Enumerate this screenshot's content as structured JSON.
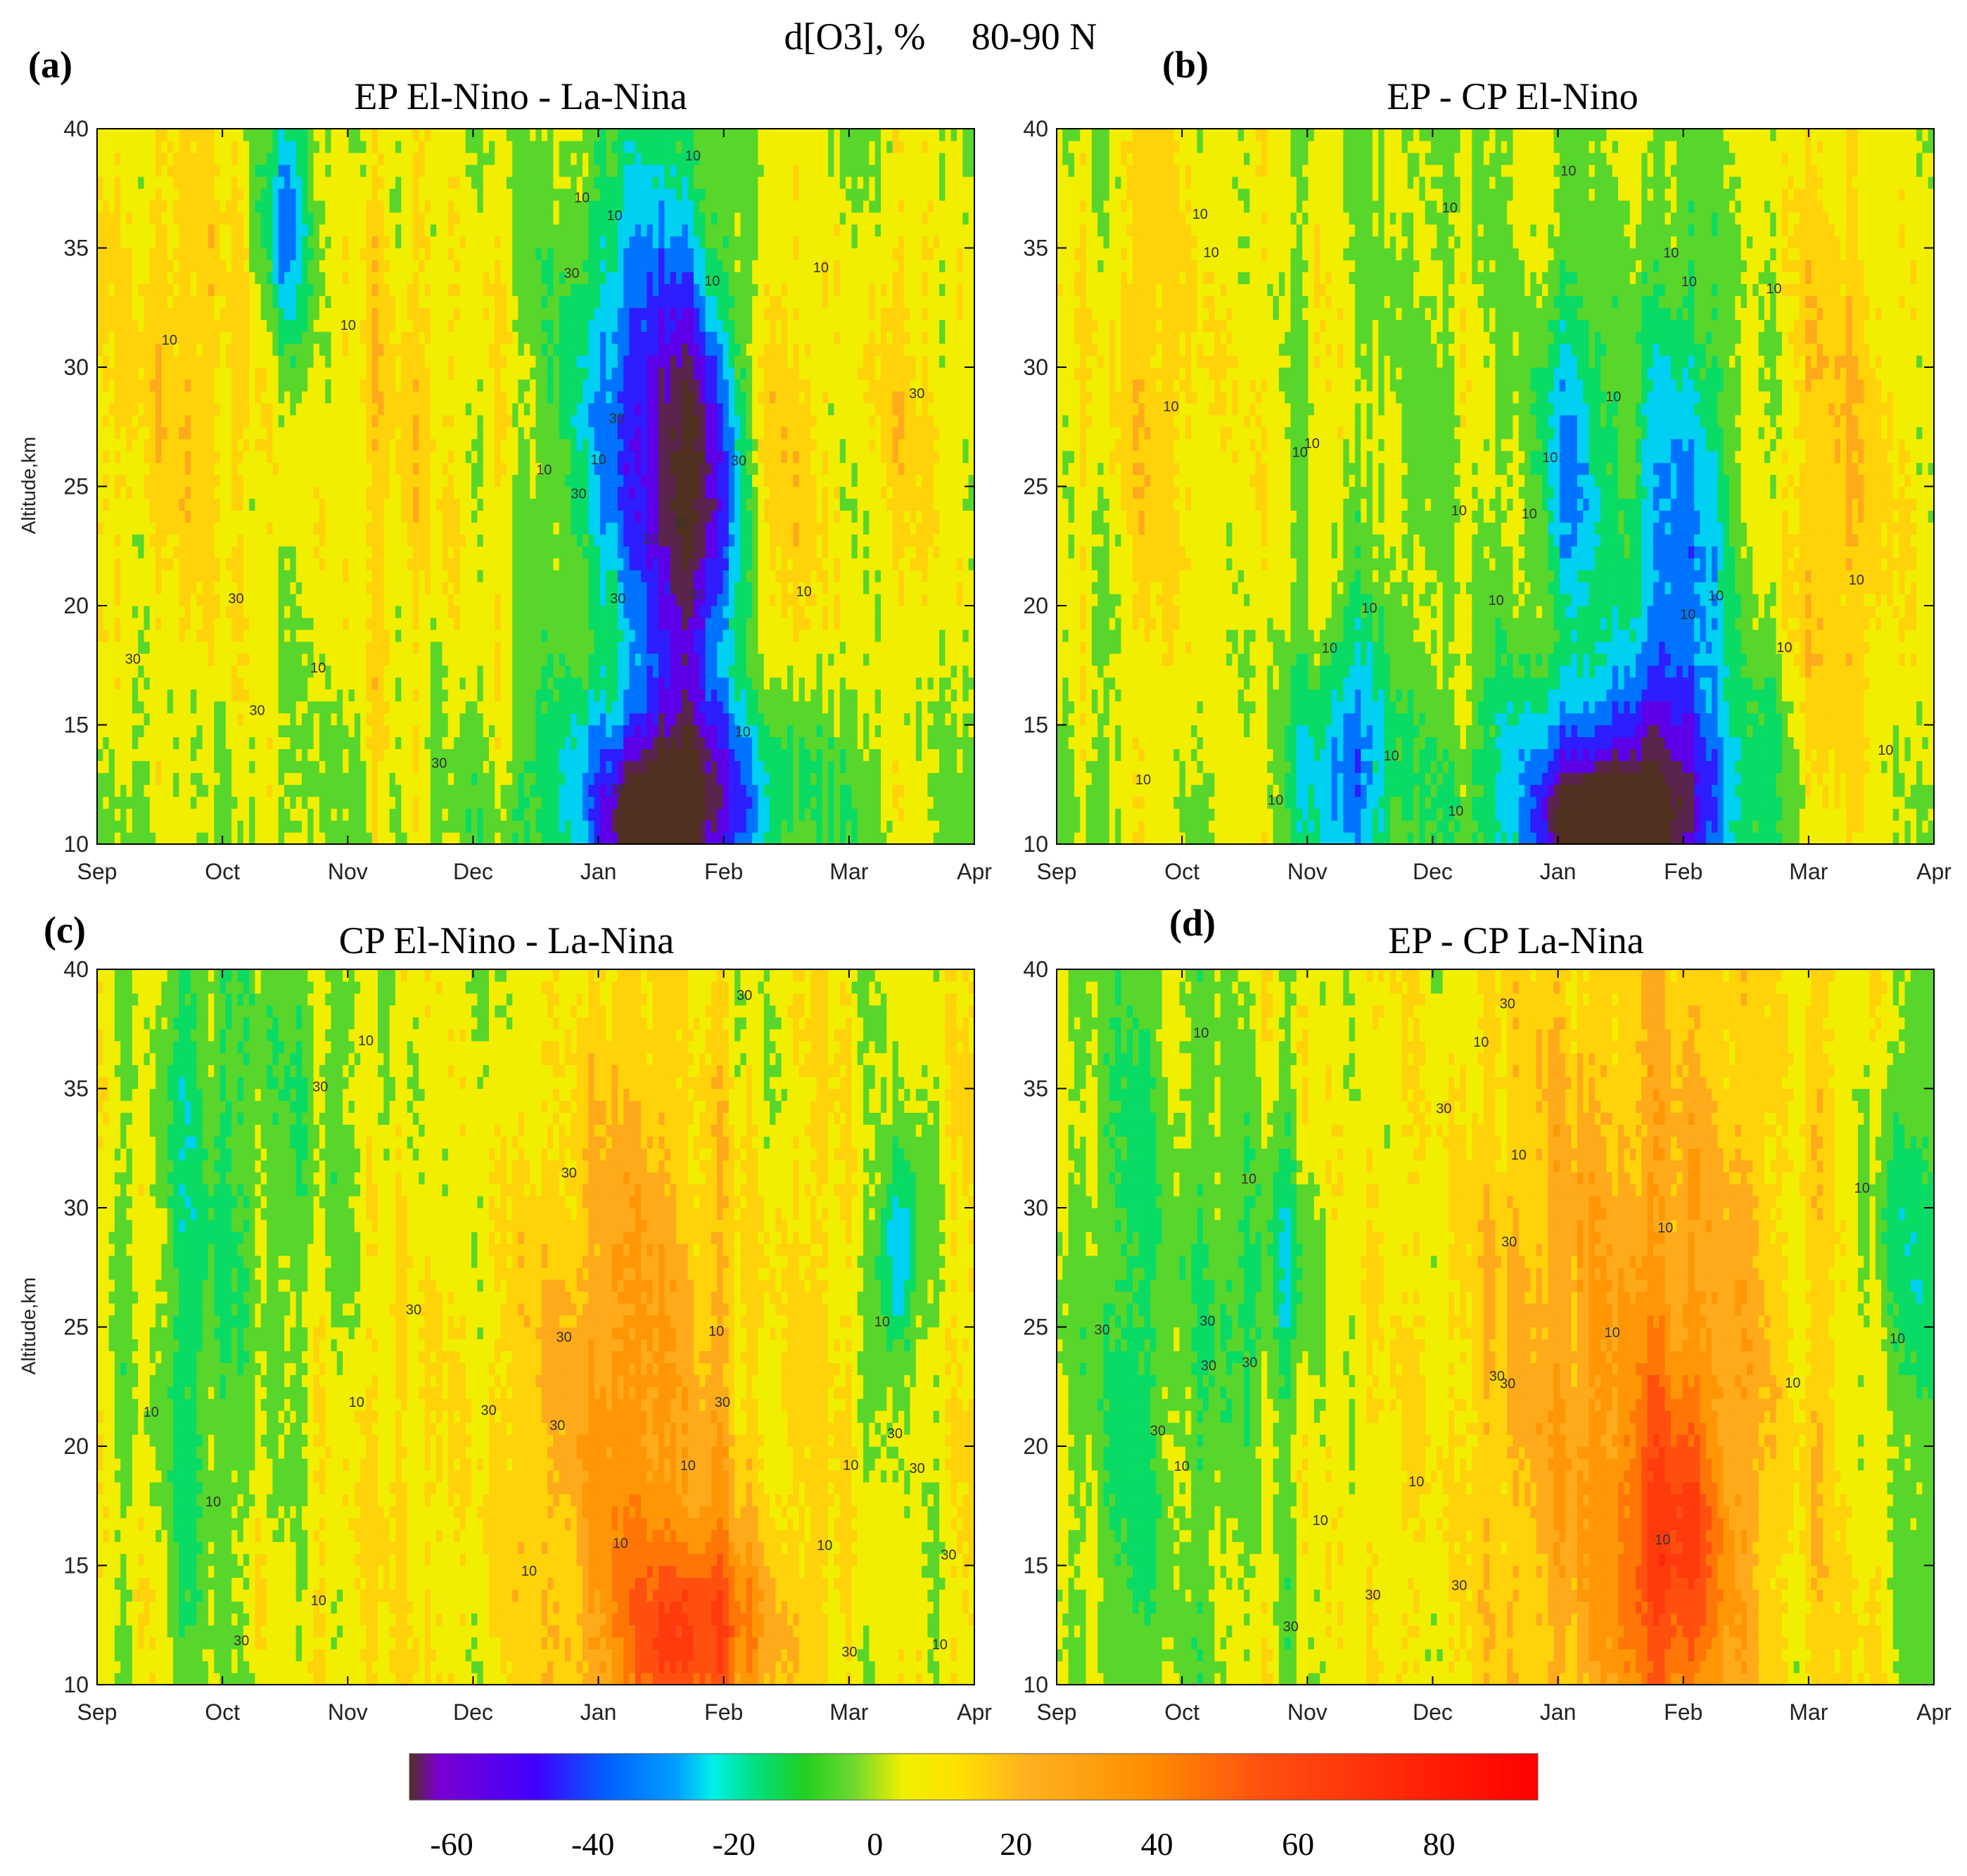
{
  "figure": {
    "title": "d[O3], %",
    "region": "80-90 N"
  },
  "colorbar": {
    "ticks": [
      -60,
      -40,
      -20,
      0,
      20,
      40,
      60,
      80
    ],
    "range": [
      -66,
      94
    ],
    "stops": [
      {
        "v": -66,
        "c": "#503020"
      },
      {
        "v": -62,
        "c": "#7a00d0"
      },
      {
        "v": -48,
        "c": "#4000ff"
      },
      {
        "v": -38,
        "c": "#0060ff"
      },
      {
        "v": -28,
        "c": "#00a0ff"
      },
      {
        "v": -23,
        "c": "#00f0e8"
      },
      {
        "v": -17,
        "c": "#00e080"
      },
      {
        "v": -10,
        "c": "#20d020"
      },
      {
        "v": -3,
        "c": "#70d830"
      },
      {
        "v": 4,
        "c": "#f0f000"
      },
      {
        "v": 12,
        "c": "#ffe000"
      },
      {
        "v": 22,
        "c": "#ffb020"
      },
      {
        "v": 38,
        "c": "#ff9000"
      },
      {
        "v": 55,
        "c": "#ff5010"
      },
      {
        "v": 94,
        "c": "#ff0000"
      }
    ]
  },
  "chart_data": [
    {
      "type": "heatmap",
      "label": "(a)",
      "title": "EP El-Nino - La-Nina",
      "xlabel": "",
      "ylabel": "Altitude,km",
      "x_ticks": [
        "Sep",
        "Oct",
        "Nov",
        "Dec",
        "Jan",
        "Feb",
        "Mar",
        "Apr"
      ],
      "y_ticks": [
        10,
        15,
        20,
        25,
        30,
        35,
        40
      ],
      "ylim": [
        10,
        40
      ],
      "contour_labels": [
        "10",
        "30"
      ],
      "base": -2,
      "features": [
        {
          "m": 4.3,
          "z": 28,
          "dm": 0.4,
          "dz": 7,
          "v": -40
        },
        {
          "m": 4.8,
          "z": 24,
          "dm": 0.25,
          "dz": 6,
          "v": -55
        },
        {
          "m": 4.6,
          "z": 12,
          "dm": 0.6,
          "dz": 3,
          "v": -60
        },
        {
          "m": 4.45,
          "z": 10.5,
          "dm": 0.2,
          "dz": 1.5,
          "v": -75
        },
        {
          "m": 1.5,
          "z": 36,
          "dm": 0.15,
          "dz": 4,
          "v": -35
        },
        {
          "m": 0.6,
          "z": 30,
          "dm": 0.6,
          "dz": 10,
          "v": 18
        },
        {
          "m": 2.6,
          "z": 28,
          "dm": 0.6,
          "dz": 10,
          "v": 15
        },
        {
          "m": 6.5,
          "z": 28,
          "dm": 0.6,
          "dz": 8,
          "v": 12
        },
        {
          "m": 5.4,
          "z": 25,
          "dm": 0.25,
          "dz": 8,
          "v": 16
        }
      ]
    },
    {
      "type": "heatmap",
      "label": "(b)",
      "title": "EP - CP El-Nino",
      "xlabel": "",
      "ylabel": "",
      "x_ticks": [
        "Sep",
        "Oct",
        "Nov",
        "Dec",
        "Jan",
        "Feb",
        "Mar",
        "Apr"
      ],
      "y_ticks": [
        10,
        15,
        20,
        25,
        30,
        35,
        40
      ],
      "ylim": [
        10,
        40
      ],
      "contour_labels": [
        "10"
      ],
      "base": 0,
      "features": [
        {
          "m": 4.5,
          "z": 12,
          "dm": 0.7,
          "dz": 3.5,
          "v": -55
        },
        {
          "m": 4.4,
          "z": 10.5,
          "dm": 0.3,
          "dz": 1.5,
          "v": -80
        },
        {
          "m": 2.3,
          "z": 13,
          "dm": 0.25,
          "dz": 4,
          "v": -40
        },
        {
          "m": 4.95,
          "z": 22,
          "dm": 0.3,
          "dz": 7,
          "v": -35
        },
        {
          "m": 4.1,
          "z": 26,
          "dm": 0.2,
          "dz": 5,
          "v": -30
        },
        {
          "m": 6.4,
          "z": 25,
          "dm": 0.4,
          "dz": 12,
          "v": 18
        },
        {
          "m": 0.7,
          "z": 30,
          "dm": 0.6,
          "dz": 8,
          "v": 12
        }
      ]
    },
    {
      "type": "heatmap",
      "label": "(c)",
      "title": "CP El-Nino - La-Nina",
      "xlabel": "",
      "ylabel": "Altitude,km",
      "x_ticks": [
        "Sep",
        "Oct",
        "Nov",
        "Dec",
        "Jan",
        "Feb",
        "Mar",
        "Apr"
      ],
      "y_ticks": [
        10,
        15,
        20,
        25,
        30,
        35,
        40
      ],
      "ylim": [
        10,
        40
      ],
      "contour_labels": [
        "10",
        "30"
      ],
      "base": 4,
      "features": [
        {
          "m": 4.2,
          "z": 20,
          "dm": 0.8,
          "dz": 12,
          "v": 28
        },
        {
          "m": 4.8,
          "z": 12,
          "dm": 0.4,
          "dz": 3,
          "v": 45
        },
        {
          "m": 0.9,
          "z": 28,
          "dm": 0.5,
          "dz": 12,
          "v": -14
        },
        {
          "m": 6.4,
          "z": 28,
          "dm": 0.12,
          "dz": 3,
          "v": -35
        },
        {
          "m": 1.8,
          "z": 35,
          "dm": 0.5,
          "dz": 6,
          "v": -10
        }
      ]
    },
    {
      "type": "heatmap",
      "label": "(d)",
      "title": "EP - CP La-Nina",
      "xlabel": "",
      "ylabel": "",
      "x_ticks": [
        "Sep",
        "Oct",
        "Nov",
        "Dec",
        "Jan",
        "Feb",
        "Mar",
        "Apr"
      ],
      "y_ticks": [
        10,
        15,
        20,
        25,
        30,
        35,
        40
      ],
      "ylim": [
        10,
        40
      ],
      "contour_labels": [
        "10",
        "30"
      ],
      "base": 3,
      "features": [
        {
          "m": 4.6,
          "z": 22,
          "dm": 0.9,
          "dz": 14,
          "v": 28
        },
        {
          "m": 4.9,
          "z": 15,
          "dm": 0.3,
          "dz": 5,
          "v": 38
        },
        {
          "m": 0.6,
          "z": 25,
          "dm": 0.6,
          "dz": 14,
          "v": -12
        },
        {
          "m": 1.7,
          "z": 27,
          "dm": 0.25,
          "dz": 4,
          "v": -18
        },
        {
          "m": 6.7,
          "z": 28,
          "dm": 0.3,
          "dz": 5,
          "v": -15
        }
      ]
    }
  ]
}
